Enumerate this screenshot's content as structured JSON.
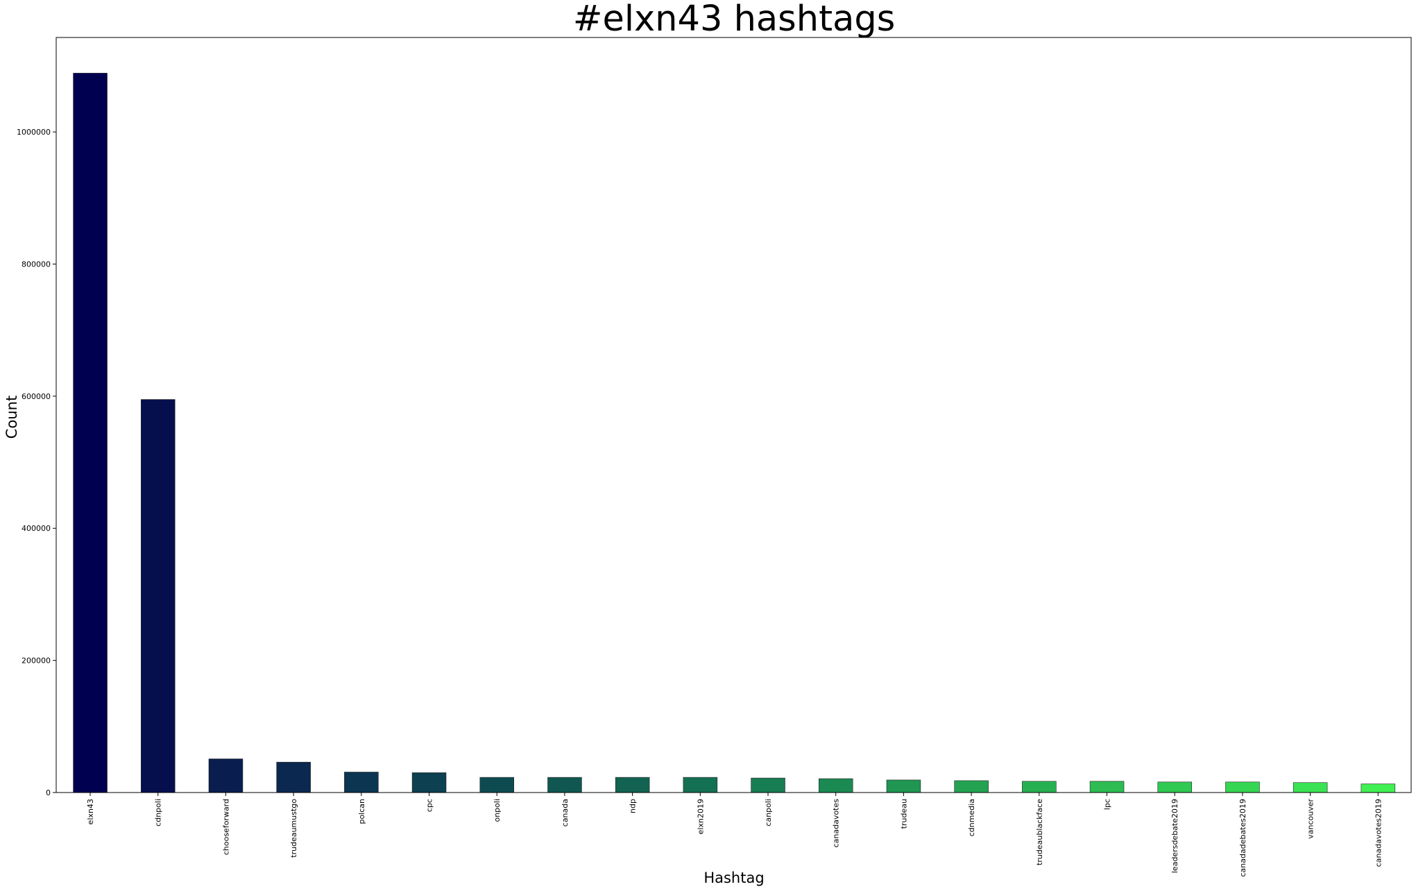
{
  "chart_data": {
    "type": "bar",
    "title": "#elxn43 hashtags",
    "xlabel": "Hashtag",
    "ylabel": "Count",
    "categories": [
      "elxn43",
      "cdnpoli",
      "chooseforward",
      "trudeaumustgo",
      "polcan",
      "cpc",
      "onpoli",
      "canada",
      "ndp",
      "elxn2019",
      "canpoli",
      "canadavotes",
      "trudeau",
      "cdnmedia",
      "trudeaublackface",
      "lpc",
      "leadersdebate2019",
      "canadadebates2019",
      "vancouver",
      "canadavotes2019"
    ],
    "values": [
      1089000,
      595000,
      51000,
      46000,
      31000,
      30000,
      23000,
      23000,
      23000,
      23000,
      22000,
      21000,
      19000,
      18000,
      17000,
      17000,
      16000,
      16000,
      15000,
      13000
    ],
    "yticks": [
      "0",
      "200000",
      "400000",
      "600000",
      "800000",
      "1000000"
    ],
    "ylim": [
      0,
      1143000
    ],
    "grid": false,
    "colors": [
      "#000050",
      "#060f4e",
      "#091e4f",
      "#0b2950",
      "#0c3551",
      "#0d4051",
      "#0e4b51",
      "#105751",
      "#126351",
      "#147052",
      "#177d52",
      "#1b8952",
      "#1f9652",
      "#23a352",
      "#27b052",
      "#2cbc52",
      "#30c952",
      "#35d652",
      "#39e353",
      "#3ff052"
    ]
  }
}
